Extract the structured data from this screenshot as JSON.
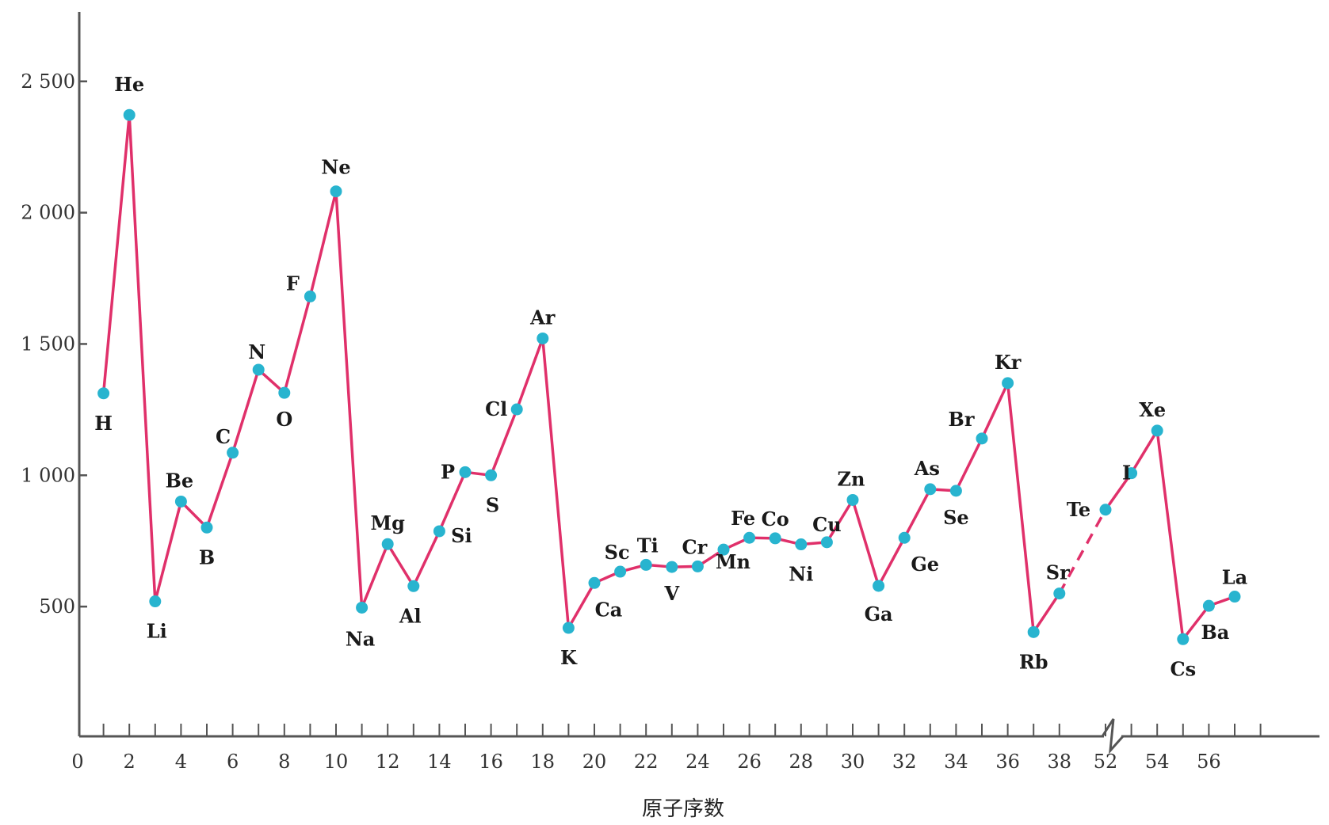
{
  "chart_data": {
    "type": "line",
    "title": "",
    "xlabel": "原子序数",
    "ylabel": "",
    "xlim": [
      0,
      57
    ],
    "ylim": [
      0,
      2500
    ],
    "grid": false,
    "legend": "none",
    "x_ticks": [
      0,
      2,
      4,
      6,
      8,
      10,
      12,
      14,
      16,
      18,
      20,
      22,
      24,
      26,
      28,
      30,
      32,
      34,
      36,
      38,
      52,
      54,
      56
    ],
    "y_ticks": [
      {
        "value": 500,
        "label": "500"
      },
      {
        "value": 1000,
        "label": "1 000"
      },
      {
        "value": 1500,
        "label": "1 500"
      },
      {
        "value": 2000,
        "label": "2 000"
      },
      {
        "value": 2500,
        "label": "2 500"
      }
    ],
    "axis_break": {
      "from": 38,
      "to": 52
    },
    "colors": {
      "line": "#e0306a",
      "marker": "#28b4cf",
      "axis": "#555555"
    },
    "series": [
      {
        "points": [
          {
            "x": 1,
            "y": 1312,
            "label": "H"
          },
          {
            "x": 2,
            "y": 2372,
            "label": "He"
          },
          {
            "x": 3,
            "y": 520,
            "label": "Li"
          },
          {
            "x": 4,
            "y": 900,
            "label": "Be"
          },
          {
            "x": 5,
            "y": 801,
            "label": "B"
          },
          {
            "x": 6,
            "y": 1086,
            "label": "C"
          },
          {
            "x": 7,
            "y": 1402,
            "label": "N"
          },
          {
            "x": 8,
            "y": 1314,
            "label": "O"
          },
          {
            "x": 9,
            "y": 1681,
            "label": "F"
          },
          {
            "x": 10,
            "y": 2081,
            "label": "Ne"
          },
          {
            "x": 11,
            "y": 496,
            "label": "Na"
          },
          {
            "x": 12,
            "y": 738,
            "label": "Mg"
          },
          {
            "x": 13,
            "y": 578,
            "label": "Al"
          },
          {
            "x": 14,
            "y": 787,
            "label": "Si"
          },
          {
            "x": 15,
            "y": 1012,
            "label": "P"
          },
          {
            "x": 16,
            "y": 1000,
            "label": "S"
          },
          {
            "x": 17,
            "y": 1251,
            "label": "Cl"
          },
          {
            "x": 18,
            "y": 1521,
            "label": "Ar"
          },
          {
            "x": 19,
            "y": 419,
            "label": "K"
          },
          {
            "x": 20,
            "y": 590,
            "label": "Ca"
          },
          {
            "x": 21,
            "y": 633,
            "label": "Sc"
          },
          {
            "x": 22,
            "y": 659,
            "label": "Ti"
          },
          {
            "x": 23,
            "y": 651,
            "label": "V"
          },
          {
            "x": 24,
            "y": 653,
            "label": "Cr"
          },
          {
            "x": 25,
            "y": 717,
            "label": "Mn"
          },
          {
            "x": 26,
            "y": 762,
            "label": "Fe"
          },
          {
            "x": 27,
            "y": 760,
            "label": "Co"
          },
          {
            "x": 28,
            "y": 737,
            "label": "Ni"
          },
          {
            "x": 29,
            "y": 745,
            "label": "Cu"
          },
          {
            "x": 30,
            "y": 906,
            "label": "Zn"
          },
          {
            "x": 31,
            "y": 579,
            "label": "Ga"
          },
          {
            "x": 32,
            "y": 762,
            "label": "Ge"
          },
          {
            "x": 33,
            "y": 947,
            "label": "As"
          },
          {
            "x": 34,
            "y": 941,
            "label": "Se"
          },
          {
            "x": 35,
            "y": 1140,
            "label": "Br"
          },
          {
            "x": 36,
            "y": 1351,
            "label": "Kr"
          },
          {
            "x": 37,
            "y": 403,
            "label": "Rb"
          },
          {
            "x": 38,
            "y": 550,
            "label": "Sr"
          },
          {
            "x": 52,
            "y": 869,
            "label": "Te"
          },
          {
            "x": 53,
            "y": 1008,
            "label": "I"
          },
          {
            "x": 54,
            "y": 1170,
            "label": "Xe"
          },
          {
            "x": 55,
            "y": 376,
            "label": "Cs"
          },
          {
            "x": 56,
            "y": 503,
            "label": "Ba"
          },
          {
            "x": 57,
            "y": 538,
            "label": "La"
          }
        ]
      }
    ]
  }
}
